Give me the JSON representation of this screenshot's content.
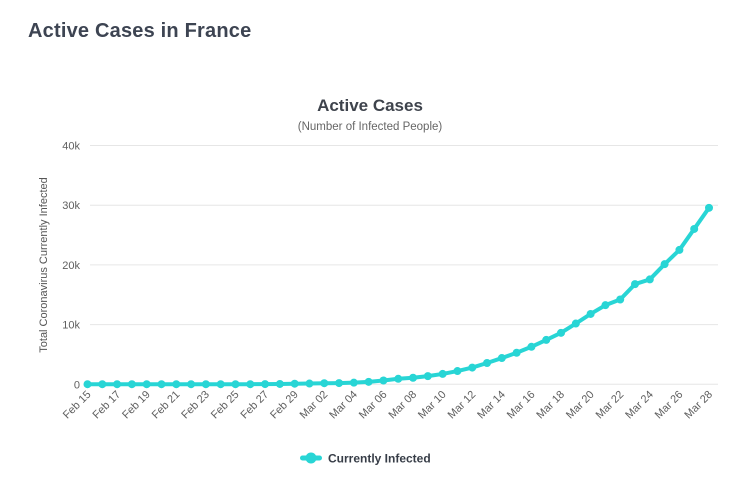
{
  "page": {
    "title": "Active Cases in France"
  },
  "chart_data": {
    "type": "line",
    "title": "Active Cases",
    "subtitle": "(Number of Infected People)",
    "ylabel": "Total Coronavirus Currently Infected",
    "xlabel": "",
    "ylim": [
      0,
      40000
    ],
    "ytick_values": [
      0,
      10000,
      20000,
      30000,
      40000
    ],
    "ytick_labels": [
      "0",
      "10k",
      "20k",
      "30k",
      "40k"
    ],
    "x_labels_shown_every": 2,
    "grid": true,
    "legend_position": "bottom",
    "categories": [
      "Feb 15",
      "Feb 16",
      "Feb 17",
      "Feb 18",
      "Feb 19",
      "Feb 20",
      "Feb 21",
      "Feb 22",
      "Feb 23",
      "Feb 24",
      "Feb 25",
      "Feb 26",
      "Feb 27",
      "Feb 28",
      "Feb 29",
      "Mar 01",
      "Mar 02",
      "Mar 03",
      "Mar 04",
      "Mar 05",
      "Mar 06",
      "Mar 07",
      "Mar 08",
      "Mar 09",
      "Mar 10",
      "Mar 11",
      "Mar 12",
      "Mar 13",
      "Mar 14",
      "Mar 15",
      "Mar 16",
      "Mar 17",
      "Mar 18",
      "Mar 19",
      "Mar 20",
      "Mar 21",
      "Mar 22",
      "Mar 23",
      "Mar 24",
      "Mar 25",
      "Mar 26",
      "Mar 27",
      "Mar 28"
    ],
    "series": [
      {
        "name": "Currently Infected",
        "color": "#28d5d5",
        "values": [
          11,
          11,
          11,
          11,
          11,
          11,
          11,
          11,
          11,
          11,
          13,
          16,
          36,
          55,
          96,
          126,
          186,
          204,
          277,
          412,
          639,
          926,
          1095,
          1370,
          1739,
          2221,
          2803,
          3570,
          4396,
          5284,
          6284,
          7432,
          8618,
          10176,
          11785,
          13255,
          14206,
          16778,
          17568,
          20123,
          22511,
          26023,
          29561
        ]
      }
    ],
    "colors": {
      "gridline": "#e6e6e6",
      "tick_text": "#606060"
    }
  }
}
